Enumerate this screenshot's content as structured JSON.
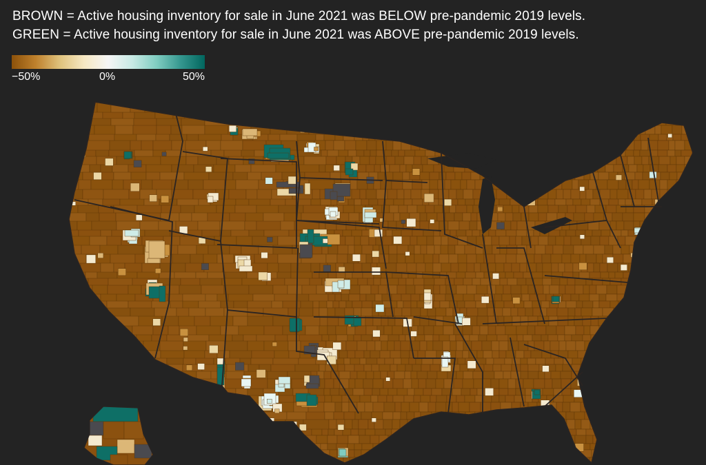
{
  "header": {
    "line1": "BROWN = Active housing inventory for sale in June 2021 was BELOW pre-pandemic 2019 levels.",
    "line2": "GREEN = Active housing inventory for sale in June 2021 was ABOVE pre-pandemic 2019 levels."
  },
  "legend": {
    "min_label": "−50%",
    "mid_label": "0%",
    "max_label": "50%",
    "min_value": -50,
    "mid_value": 0,
    "max_value": 50,
    "colors": [
      "#8c510a",
      "#bf812d",
      "#dfc27d",
      "#f6e8c3",
      "#f5f5f5",
      "#c7eae5",
      "#80cdc1",
      "#35978f",
      "#01665e"
    ]
  },
  "map": {
    "subject": "Year-over-2019 change in active housing inventory by U.S. county, June 2021",
    "dominant_color": "#8b510f",
    "above_color": "#0e6f66",
    "no_data_color": "#4a4a4f",
    "background": "#232323"
  }
}
